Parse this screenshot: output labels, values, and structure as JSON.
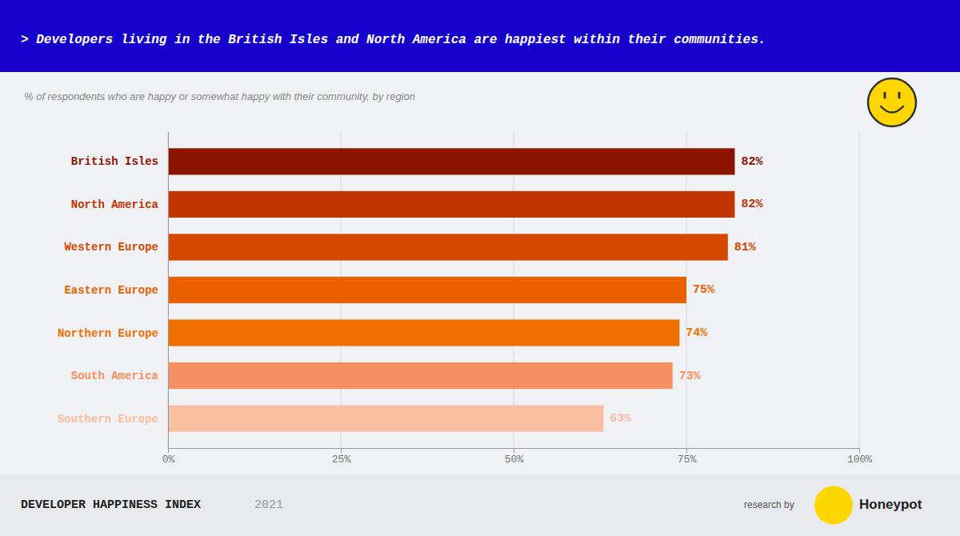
{
  "chart_data": {
    "type": "bar",
    "orientation": "horizontal",
    "title": "> Developers living in the British Isles and North America are happiest within their communities.",
    "subtitle": "% of respondents who are happy or somewhat happy with their community, by region",
    "categories": [
      "British Isles",
      "North America",
      "Western Europe",
      "Eastern Europe",
      "Northern Europe",
      "South America",
      "Southern Europe"
    ],
    "values": [
      82,
      82,
      81,
      75,
      74,
      73,
      63
    ],
    "value_labels": [
      "82%",
      "82%",
      "81%",
      "75%",
      "74%",
      "73%",
      "63%"
    ],
    "data_labels": true,
    "colors": [
      "#8B1400",
      "#C03500",
      "#D44800",
      "#E86000",
      "#F07000",
      "#F59060",
      "#F8BFA0"
    ],
    "xlim": [
      0,
      100
    ],
    "xticks": [
      {
        "value": 0,
        "label": "0%"
      },
      {
        "value": 25,
        "label": "25%"
      },
      {
        "value": 50,
        "label": "50%"
      },
      {
        "value": 75,
        "label": "75%"
      },
      {
        "value": 100,
        "label": "100%"
      }
    ],
    "grid": true,
    "annotations": [
      "DEVELOPER HAPPINESS INDEX",
      "2021",
      "research by",
      "Honeypot"
    ]
  }
}
